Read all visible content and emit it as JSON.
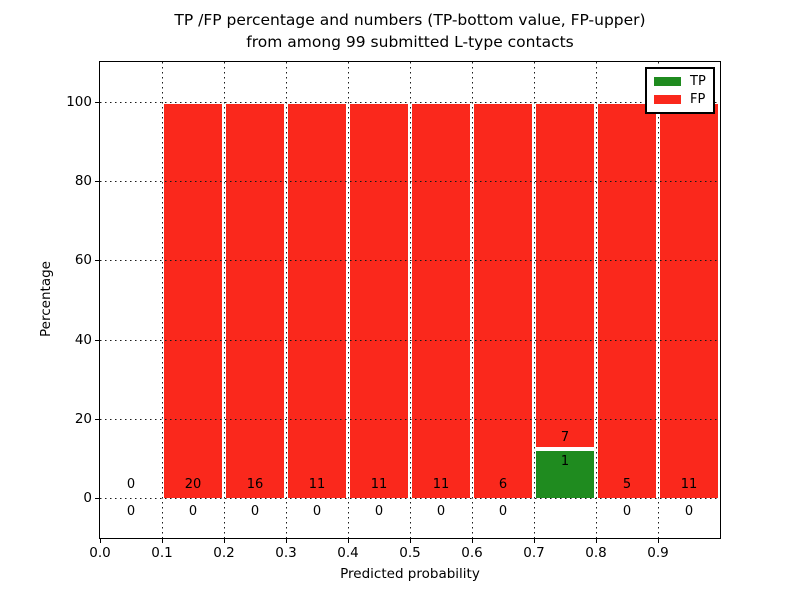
{
  "chart_data": {
    "type": "bar",
    "stacked": true,
    "title_line1": "TP /FP percentage and numbers (TP-bottom value, FP-upper)",
    "title_line2": "from among 99 submitted L-type contacts",
    "xlabel": "Predicted probability",
    "ylabel": "Percentage",
    "xlim": [
      0.0,
      1.0
    ],
    "ylim": [
      -10,
      110
    ],
    "xtick_labels": [
      "0.0",
      "0.1",
      "0.2",
      "0.3",
      "0.4",
      "0.5",
      "0.6",
      "0.7",
      "0.8",
      "0.9"
    ],
    "ytick_labels": [
      "0",
      "20",
      "40",
      "60",
      "80",
      "100"
    ],
    "grid": true,
    "grid_style": "dotted",
    "legend_position": "upper right",
    "total_contacts": 99,
    "bin_edges": [
      0.0,
      0.1,
      0.2,
      0.3,
      0.4,
      0.5,
      0.6,
      0.7,
      0.8,
      0.9,
      1.0
    ],
    "series": [
      {
        "name": "TP",
        "color": "#1f8b1f",
        "values": [
          0,
          0,
          0,
          0,
          0,
          0,
          0,
          12.5,
          0,
          0
        ],
        "counts": [
          0,
          0,
          0,
          0,
          0,
          0,
          0,
          1,
          0,
          0
        ]
      },
      {
        "name": "FP",
        "color": "#fa281c",
        "values": [
          0,
          100,
          100,
          100,
          100,
          100,
          100,
          87.5,
          100,
          100
        ],
        "counts": [
          0,
          20,
          16,
          11,
          11,
          11,
          6,
          7,
          5,
          11
        ]
      }
    ]
  }
}
